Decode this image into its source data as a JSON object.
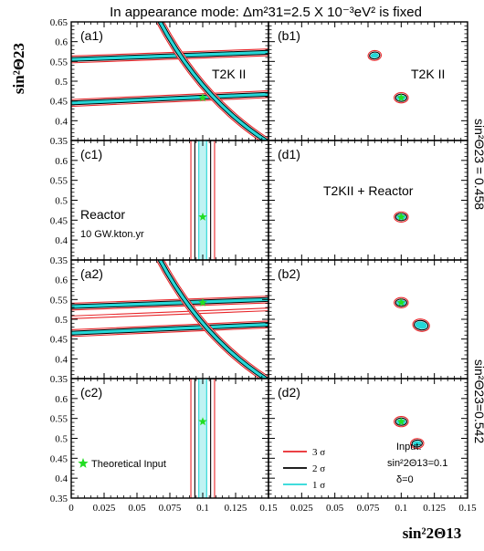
{
  "title": "In appearance mode: Δm²31=2.5 X 10⁻³eV² is fixed",
  "xlabel": "sin²2Θ13",
  "ylabel": "sin²Θ23",
  "side_labels": [
    "sin²Θ23 = 0.458",
    "sin²Θ23=0.542"
  ],
  "legend": {
    "entries": [
      {
        "label": "3 σ",
        "color": "#e8262a"
      },
      {
        "label": "2 σ",
        "color": "#000000"
      },
      {
        "label": "1 σ",
        "color": "#25d7d7"
      }
    ],
    "input_title": "Input:",
    "input_line1": "sin²2Θ13=0.1",
    "input_line2": "δ=0",
    "marker_label": "Theoretical Input"
  },
  "colors": {
    "sigma3": "#e8262a",
    "sigma2": "#000000",
    "sigma1": "#25d7d7",
    "band": "#25d7d7",
    "marker": "#22dd22"
  },
  "chart_data": [
    {
      "type": "line",
      "panel": "a1",
      "label": "(a1)",
      "annotation": "T2K II",
      "true_point": [
        0.1,
        0.458
      ],
      "xlim": [
        0,
        0.15
      ],
      "ylim": [
        0.35,
        0.65
      ]
    },
    {
      "type": "line",
      "panel": "b1",
      "label": "(b1)",
      "annotation": "T2K II",
      "true_point": [
        0.1,
        0.458
      ],
      "fake_point": [
        0.08,
        0.565
      ],
      "xlim": [
        0,
        0.15
      ],
      "ylim": [
        0.35,
        0.65
      ]
    },
    {
      "type": "line",
      "panel": "c1",
      "label": "(c1)",
      "annotation": "Reactor",
      "annotation2": "10 GW.kton.yr",
      "true_point": [
        0.1,
        0.458
      ],
      "xlim": [
        0,
        0.15
      ],
      "ylim": [
        0.35,
        0.65
      ]
    },
    {
      "type": "line",
      "panel": "d1",
      "label": "(d1)",
      "annotation": "T2KII + Reactor",
      "true_point": [
        0.1,
        0.458
      ],
      "xlim": [
        0,
        0.15
      ],
      "ylim": [
        0.35,
        0.65
      ]
    },
    {
      "type": "line",
      "panel": "a2",
      "label": "(a2)",
      "true_point": [
        0.1,
        0.542
      ],
      "xlim": [
        0,
        0.15
      ],
      "ylim": [
        0.35,
        0.65
      ]
    },
    {
      "type": "line",
      "panel": "b2",
      "label": "(b2)",
      "true_point": [
        0.1,
        0.542
      ],
      "fake_point": [
        0.115,
        0.485
      ],
      "xlim": [
        0,
        0.15
      ],
      "ylim": [
        0.35,
        0.65
      ]
    },
    {
      "type": "line",
      "panel": "c2",
      "label": "(c2)",
      "true_point": [
        0.1,
        0.542
      ],
      "xlim": [
        0,
        0.15
      ],
      "ylim": [
        0.35,
        0.65
      ]
    },
    {
      "type": "line",
      "panel": "d2",
      "label": "(d2)",
      "true_point": [
        0.1,
        0.542
      ],
      "fake_point": [
        0.112,
        0.487
      ],
      "xlim": [
        0,
        0.15
      ],
      "ylim": [
        0.35,
        0.65
      ]
    }
  ],
  "xticks": [
    "0",
    "0.025",
    "0.05",
    "0.075",
    "0.1",
    "0.125",
    "0.15"
  ],
  "yticks": [
    "0.35",
    "0.4",
    "0.45",
    "0.5",
    "0.55",
    "0.6",
    "0.65"
  ]
}
